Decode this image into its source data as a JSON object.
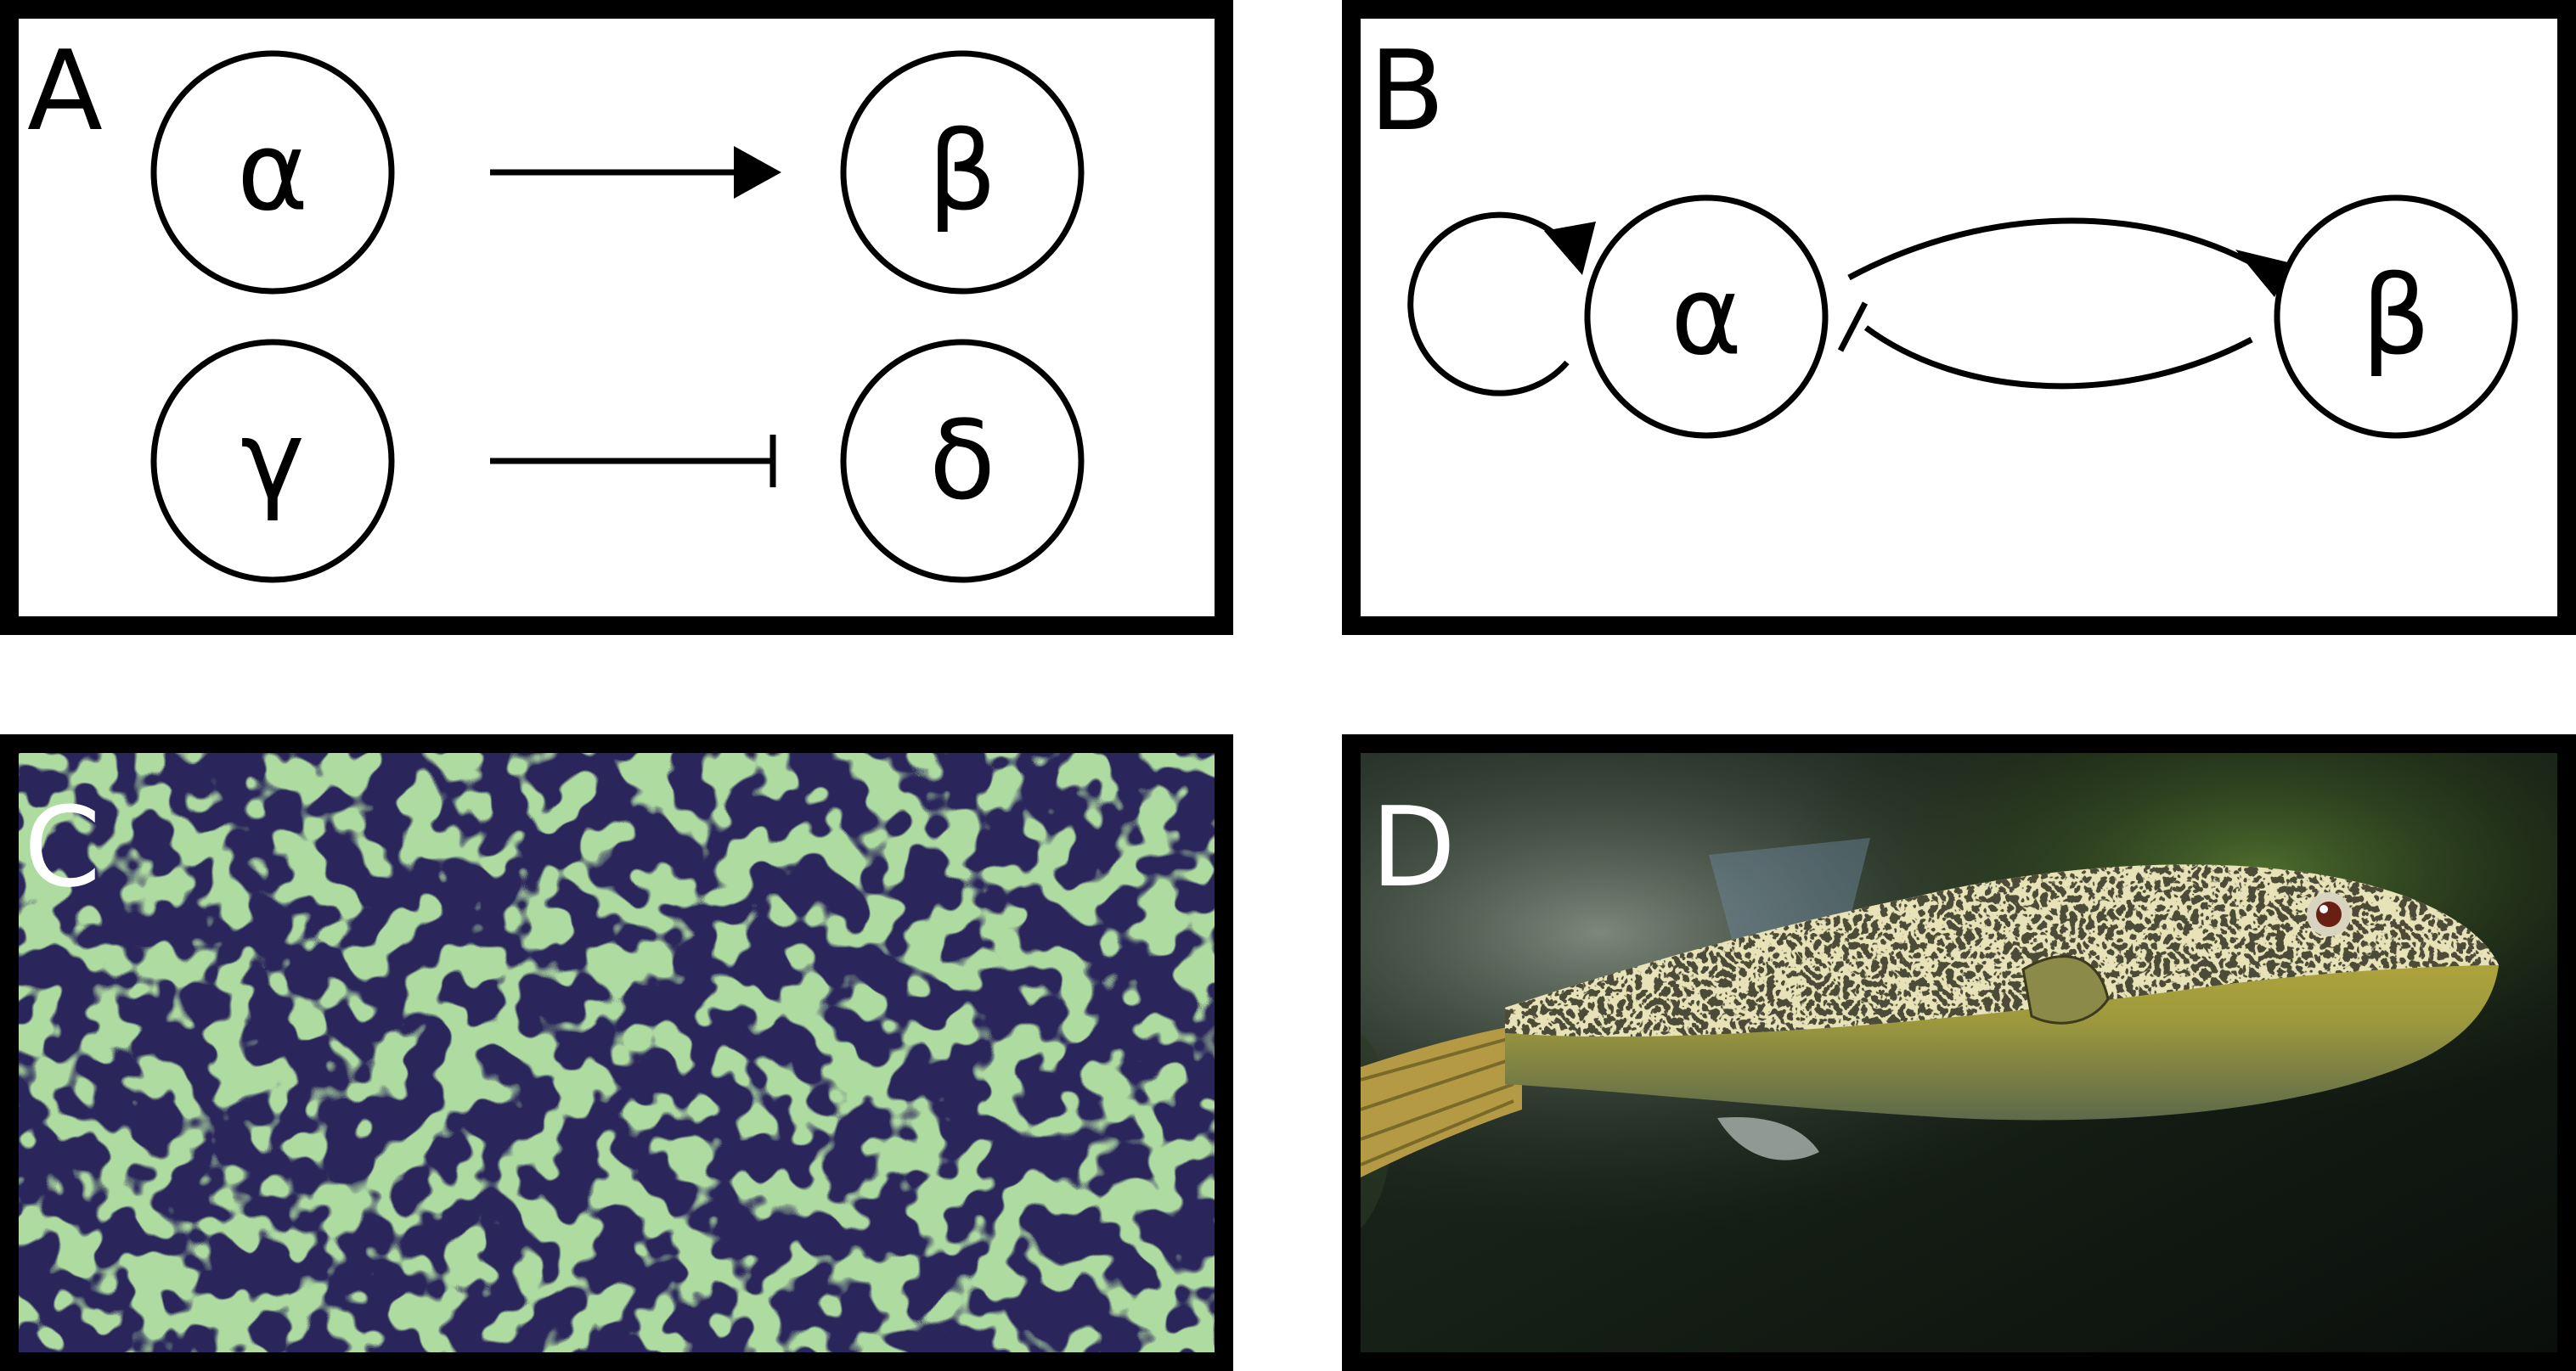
{
  "panels": {
    "a": {
      "letter": "A",
      "nodes": {
        "alpha": "α",
        "beta": "β",
        "gamma": "γ",
        "delta": "δ"
      }
    },
    "b": {
      "letter": "B",
      "nodes": {
        "alpha": "α",
        "beta": "β"
      }
    },
    "c": {
      "letter": "C",
      "colors": {
        "background": "#2a265c",
        "pattern": "#6cb45a"
      }
    },
    "d": {
      "letter": "D"
    }
  }
}
